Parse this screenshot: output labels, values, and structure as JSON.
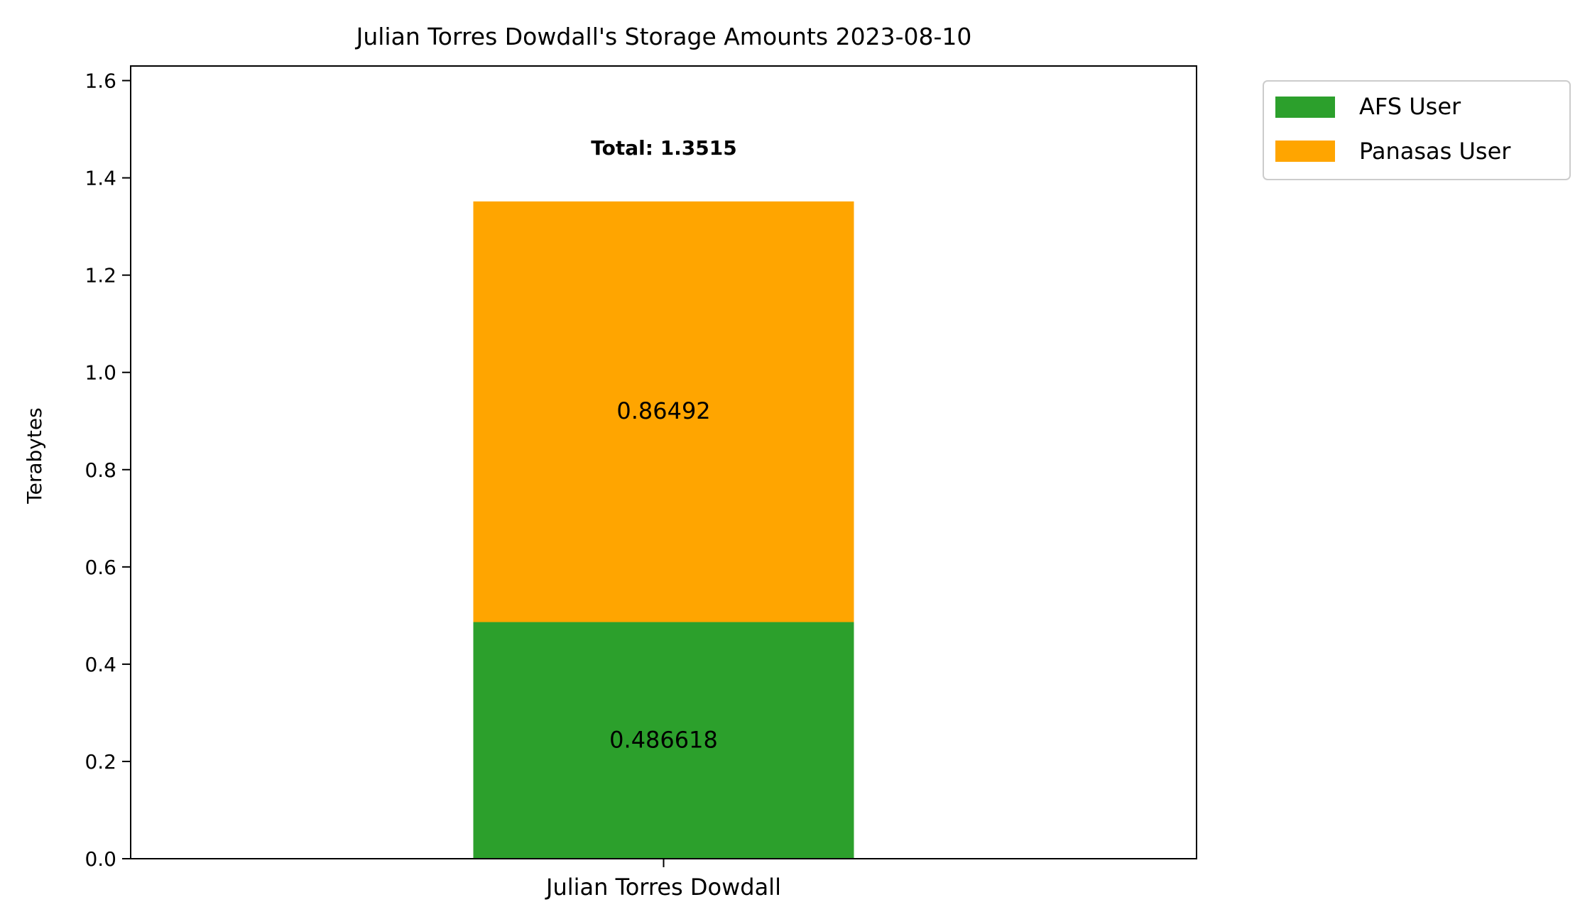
{
  "chart_data": {
    "type": "bar",
    "stacked": true,
    "title": "Julian Torres Dowdall's Storage Amounts 2023-08-10",
    "xlabel": "",
    "ylabel": "Terabytes",
    "categories": [
      "Julian Torres Dowdall"
    ],
    "series": [
      {
        "name": "AFS User",
        "values": [
          0.486618
        ],
        "label": "0.486618",
        "color": "#2ca02c"
      },
      {
        "name": "Panasas User",
        "values": [
          0.86492
        ],
        "label": "0.86492",
        "color": "#ffa500"
      }
    ],
    "total_label": "Total: 1.3515",
    "ylim": [
      0,
      1.63
    ],
    "yticks": [
      "0.0",
      "0.2",
      "0.4",
      "0.6",
      "0.8",
      "1.0",
      "1.2",
      "1.4",
      "1.6"
    ],
    "grid": false,
    "legend": "outside-top-right"
  }
}
